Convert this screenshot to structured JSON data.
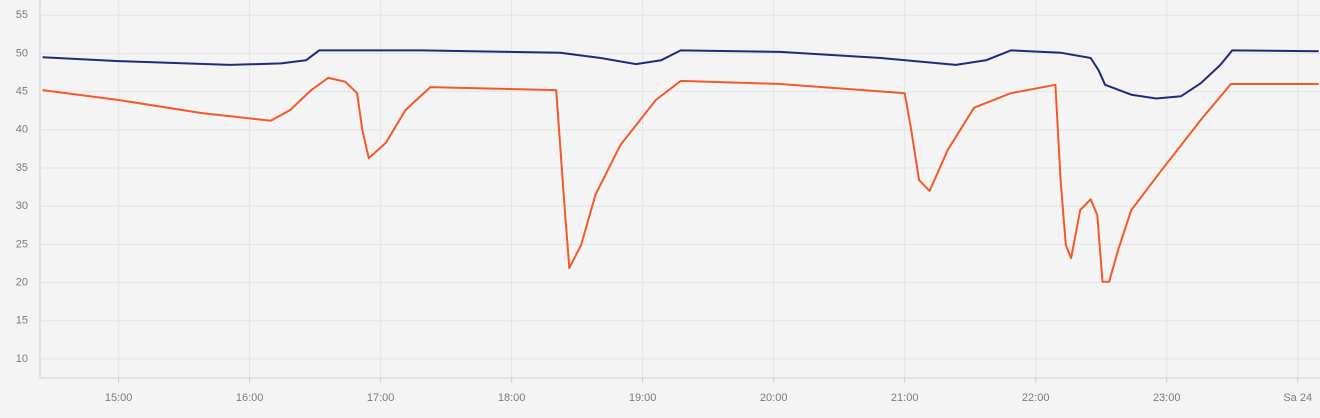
{
  "chart_data": {
    "type": "line",
    "xlim": [
      14.4,
      24.17
    ],
    "ylim": [
      7.5,
      57
    ],
    "xticks": [
      {
        "value": 15,
        "label": "15:00"
      },
      {
        "value": 16,
        "label": "16:00"
      },
      {
        "value": 17,
        "label": "17:00"
      },
      {
        "value": 18,
        "label": "18:00"
      },
      {
        "value": 19,
        "label": "19:00"
      },
      {
        "value": 20,
        "label": "20:00"
      },
      {
        "value": 21,
        "label": "21:00"
      },
      {
        "value": 22,
        "label": "22:00"
      },
      {
        "value": 23,
        "label": "23:00"
      },
      {
        "value": 24,
        "label": "Sa 24"
      }
    ],
    "yticks": [
      10,
      15,
      20,
      25,
      30,
      35,
      40,
      45,
      50,
      55
    ],
    "grid": true,
    "series": [
      {
        "color": "#1f2a7a",
        "x": [
          14.42,
          15.0,
          15.85,
          16.24,
          16.43,
          16.53,
          17.31,
          18.37,
          18.68,
          18.95,
          19.14,
          19.29,
          20.05,
          20.82,
          21.39,
          21.62,
          21.81,
          22.19,
          22.42,
          22.48,
          22.53,
          22.73,
          22.92,
          23.11,
          23.26,
          23.41,
          23.5,
          24.16
        ],
        "values": [
          49.5,
          49.0,
          48.5,
          48.7,
          49.1,
          50.4,
          50.4,
          50.1,
          49.4,
          48.6,
          49.1,
          50.4,
          50.2,
          49.4,
          48.5,
          49.1,
          50.4,
          50.1,
          49.4,
          47.8,
          45.9,
          44.6,
          44.1,
          44.4,
          46.1,
          48.5,
          50.4,
          50.3
        ]
      },
      {
        "color": "#f4592a",
        "x": [
          14.42,
          15.0,
          15.63,
          16.16,
          16.31,
          16.47,
          16.6,
          16.73,
          16.82,
          16.86,
          16.91,
          17.04,
          17.19,
          17.38,
          18.34,
          18.4,
          18.44,
          18.53,
          18.64,
          18.83,
          19.1,
          19.29,
          20.05,
          21.0,
          21.05,
          21.11,
          21.19,
          21.33,
          21.53,
          21.81,
          22.15,
          22.19,
          22.23,
          22.27,
          22.34,
          22.42,
          22.47,
          22.51,
          22.56,
          22.63,
          22.73,
          22.96,
          23.26,
          23.49,
          24.16
        ],
        "values": [
          45.2,
          43.9,
          42.2,
          41.2,
          42.6,
          45.2,
          46.8,
          46.3,
          44.8,
          40.0,
          36.3,
          38.3,
          42.6,
          45.6,
          45.2,
          30.8,
          21.9,
          24.9,
          31.5,
          38.0,
          43.9,
          46.4,
          46.0,
          44.8,
          40.0,
          33.4,
          32.0,
          37.4,
          42.9,
          44.8,
          45.9,
          33.4,
          24.9,
          23.2,
          29.5,
          30.9,
          28.8,
          20.1,
          20.1,
          24.3,
          29.5,
          34.7,
          41.3,
          46.0,
          46.0
        ]
      }
    ]
  }
}
